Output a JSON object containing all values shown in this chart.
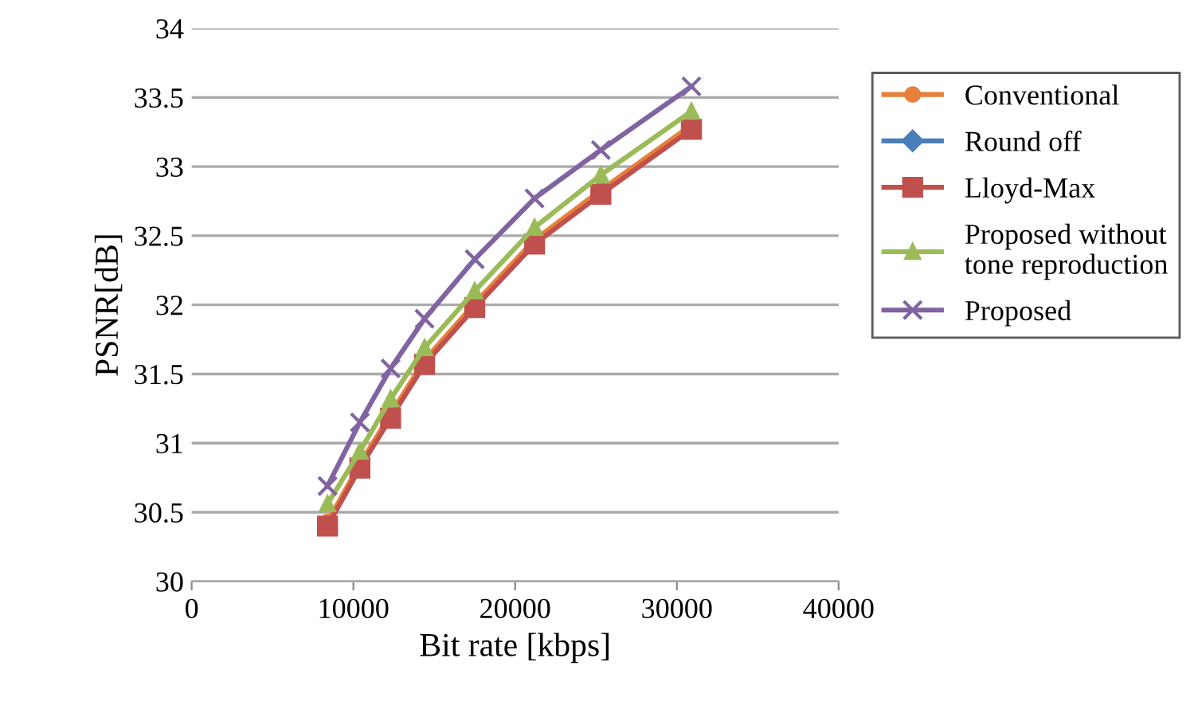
{
  "chart_data": {
    "type": "line",
    "xlabel": "Bit rate [kbps]",
    "ylabel": "PSNR[dB]",
    "x": [
      8400,
      10400,
      12300,
      14400,
      17500,
      21200,
      25300,
      30900
    ],
    "series": [
      {
        "name": "Conventional",
        "color": "#e8803a",
        "marker": "circle",
        "values": [
          30.43,
          30.85,
          31.21,
          31.6,
          32.01,
          32.47,
          32.83,
          33.3
        ]
      },
      {
        "name": "Round off",
        "color": "#4a7ebb",
        "marker": "diamond",
        "values": [
          null,
          null,
          null,
          null,
          null,
          null,
          null,
          null
        ]
      },
      {
        "name": "Lloyd-Max",
        "color": "#c0504d",
        "marker": "square",
        "values": [
          30.4,
          30.82,
          31.18,
          31.57,
          31.98,
          32.44,
          32.8,
          33.27
        ]
      },
      {
        "name": "Proposed without\ntone reproduction",
        "color": "#9bbb59",
        "marker": "triangle",
        "values": [
          30.56,
          30.94,
          31.32,
          31.69,
          32.1,
          32.56,
          32.94,
          33.4
        ]
      },
      {
        "name": "Proposed",
        "color": "#8064a2",
        "marker": "cross",
        "values": [
          30.69,
          31.15,
          31.54,
          31.9,
          32.33,
          32.77,
          33.12,
          33.58
        ]
      }
    ],
    "xlim": [
      0,
      40000
    ],
    "xticks": [
      0,
      10000,
      20000,
      30000,
      40000
    ],
    "ylim": [
      30,
      34
    ],
    "yticks": [
      30,
      30.5,
      31,
      31.5,
      32,
      32.5,
      33,
      33.5,
      34
    ],
    "grid": "y",
    "legend": "right",
    "line_style": "solid"
  }
}
